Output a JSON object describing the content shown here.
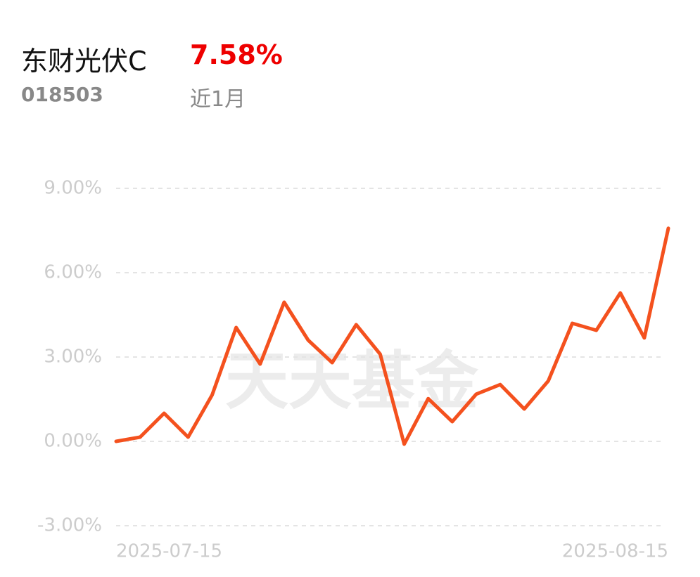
{
  "header": {
    "fund_name": "东财光伏C",
    "return": "7.58%",
    "code": "018503",
    "period": "近1月"
  },
  "chart_data": {
    "type": "line",
    "watermark": "天天基金",
    "categories": [
      "2025-07-15",
      null,
      null,
      null,
      null,
      null,
      null,
      null,
      null,
      null,
      null,
      null,
      null,
      null,
      null,
      null,
      null,
      null,
      null,
      null,
      null,
      null,
      null,
      "2025-08-15"
    ],
    "values": [
      0.0,
      0.15,
      1.0,
      0.15,
      1.65,
      4.05,
      2.75,
      4.95,
      3.6,
      2.8,
      4.15,
      3.1,
      -0.1,
      1.52,
      0.7,
      1.68,
      2.02,
      1.15,
      2.15,
      4.2,
      3.95,
      5.28,
      3.68,
      7.58
    ],
    "color": "#f4511e",
    "ylim": [
      -3,
      9
    ],
    "yticks": [
      {
        "value": -3,
        "label": "-3.00%"
      },
      {
        "value": 0,
        "label": "0.00%"
      },
      {
        "value": 3,
        "label": "3.00%"
      },
      {
        "value": 6,
        "label": "6.00%"
      },
      {
        "value": 9,
        "label": "9.00%"
      }
    ],
    "grid": true
  }
}
